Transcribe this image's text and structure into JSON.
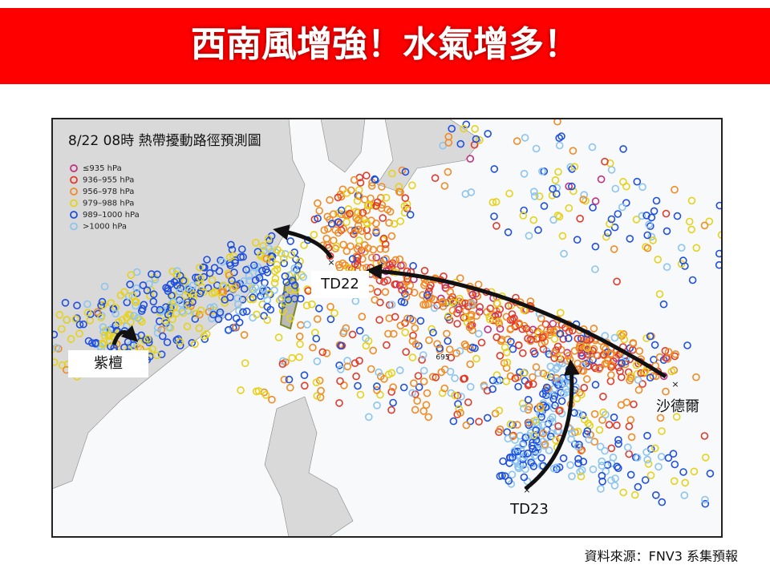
{
  "header": {
    "title": "西南風增強！水氣增多！"
  },
  "map": {
    "title": "8/22 08時 熱帶擾動路徑預測圖",
    "legend": [
      {
        "label": "≤935 hPa",
        "color": "#c2307f"
      },
      {
        "label": "936–955 hPa",
        "color": "#e23a2a"
      },
      {
        "label": "956–978 hPa",
        "color": "#f28a22"
      },
      {
        "label": "979–988 hPa",
        "color": "#e6d21a"
      },
      {
        "label": "989–1000 hPa",
        "color": "#1f4fe0"
      },
      {
        "label": ">1000 hPa",
        "color": "#8cc4ef"
      }
    ],
    "labels": [
      {
        "text": "TD22"
      },
      {
        "text": "紫檀"
      },
      {
        "text": "TD23"
      },
      {
        "text": "沙德爾"
      },
      {
        "text": "695"
      }
    ]
  },
  "footer": {
    "source": "資料來源：FNV3 系集預報"
  }
}
